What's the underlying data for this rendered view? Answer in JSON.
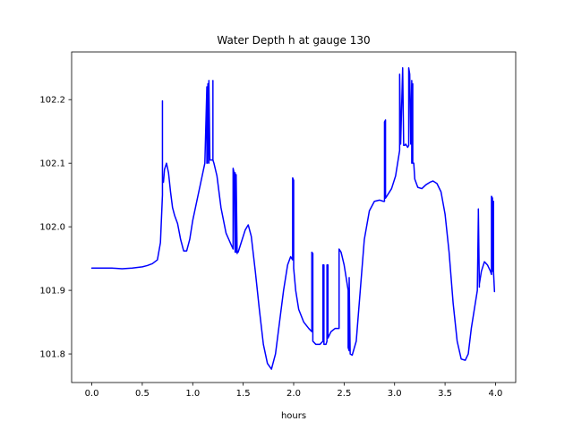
{
  "chart_data": {
    "type": "line",
    "title": "Water Depth h at gauge 130",
    "xlabel": "hours",
    "ylabel": "",
    "xlim": [
      -0.2,
      4.2
    ],
    "ylim": [
      101.755,
      102.275
    ],
    "xticks": [
      "0.0",
      "0.5",
      "1.0",
      "1.5",
      "2.0",
      "2.5",
      "3.0",
      "3.5",
      "4.0"
    ],
    "yticks": [
      "101.8",
      "101.9",
      "102.0",
      "102.1",
      "102.2"
    ],
    "xtick_values": [
      0.0,
      0.5,
      1.0,
      1.5,
      2.0,
      2.5,
      3.0,
      3.5,
      4.0
    ],
    "ytick_values": [
      101.8,
      101.9,
      102.0,
      102.1,
      102.2
    ],
    "grid": false,
    "series_color": "#0000ff",
    "series": [
      {
        "x": [
          0.0,
          0.1,
          0.2,
          0.3,
          0.4,
          0.5,
          0.55,
          0.6,
          0.65,
          0.68,
          0.7,
          0.7,
          0.7,
          0.71,
          0.72,
          0.74,
          0.76,
          0.78,
          0.8,
          0.82,
          0.85,
          0.88,
          0.91,
          0.94,
          0.97,
          1.0,
          1.04,
          1.08,
          1.12,
          1.14,
          1.14,
          1.145,
          1.15,
          1.16,
          1.16,
          1.16,
          1.17,
          1.2,
          1.2,
          1.2,
          1.21,
          1.24,
          1.28,
          1.33,
          1.38,
          1.4,
          1.4,
          1.41,
          1.42,
          1.42,
          1.43,
          1.43,
          1.44,
          1.44,
          1.45,
          1.48,
          1.52,
          1.55,
          1.58,
          1.62,
          1.66,
          1.7,
          1.74,
          1.78,
          1.82,
          1.86,
          1.9,
          1.94,
          1.97,
          1.99,
          1.99,
          2.0,
          2.0,
          2.02,
          2.05,
          2.1,
          2.15,
          2.18,
          2.18,
          2.19,
          2.19,
          2.22,
          2.26,
          2.29,
          2.29,
          2.3,
          2.3,
          2.32,
          2.33,
          2.33,
          2.34,
          2.34,
          2.37,
          2.41,
          2.44,
          2.45,
          2.45,
          2.47,
          2.5,
          2.52,
          2.54,
          2.54,
          2.55,
          2.55,
          2.56,
          2.58,
          2.62,
          2.66,
          2.7,
          2.75,
          2.8,
          2.85,
          2.89,
          2.9,
          2.9,
          2.91,
          2.91,
          2.93,
          2.97,
          3.01,
          3.05,
          3.05,
          3.06,
          3.08,
          3.09,
          3.1,
          3.11,
          3.13,
          3.14,
          3.14,
          3.15,
          3.16,
          3.17,
          3.17,
          3.18,
          3.18,
          3.19,
          3.2,
          3.23,
          3.27,
          3.31,
          3.35,
          3.38,
          3.42,
          3.46,
          3.5,
          3.54,
          3.58,
          3.62,
          3.66,
          3.7,
          3.73,
          3.76,
          3.8,
          3.82,
          3.83,
          3.83,
          3.84,
          3.84,
          3.86,
          3.89,
          3.92,
          3.95,
          3.96,
          3.96,
          3.97,
          3.97,
          3.98,
          3.98,
          3.99
        ],
        "y": [
          101.935,
          101.935,
          101.935,
          101.934,
          101.935,
          101.937,
          101.939,
          101.942,
          101.948,
          101.975,
          102.05,
          102.198,
          102.075,
          102.07,
          102.09,
          102.1,
          102.085,
          102.055,
          102.03,
          102.018,
          102.005,
          101.98,
          101.962,
          101.962,
          101.98,
          102.01,
          102.04,
          102.07,
          102.1,
          102.22,
          102.1,
          102.1,
          102.225,
          102.1,
          102.105,
          102.23,
          102.105,
          102.105,
          102.23,
          102.105,
          102.1,
          102.08,
          102.03,
          101.99,
          101.972,
          101.965,
          102.092,
          102.085,
          101.96,
          102.085,
          101.96,
          102.082,
          101.958,
          101.96,
          101.96,
          101.975,
          101.995,
          102.003,
          101.985,
          101.93,
          101.87,
          101.815,
          101.785,
          101.776,
          101.8,
          101.85,
          101.9,
          101.94,
          101.953,
          101.948,
          102.077,
          102.073,
          101.935,
          101.9,
          101.87,
          101.85,
          101.84,
          101.835,
          101.96,
          101.958,
          101.82,
          101.815,
          101.815,
          101.82,
          101.94,
          101.94,
          101.815,
          101.815,
          101.82,
          101.94,
          101.94,
          101.825,
          101.835,
          101.84,
          101.84,
          101.84,
          101.965,
          101.96,
          101.94,
          101.92,
          101.9,
          101.81,
          101.805,
          101.92,
          101.8,
          101.798,
          101.82,
          101.9,
          101.98,
          102.025,
          102.04,
          102.042,
          102.04,
          102.04,
          102.165,
          102.168,
          102.045,
          102.05,
          102.06,
          102.08,
          102.12,
          102.24,
          102.13,
          102.25,
          102.128,
          102.128,
          102.13,
          102.125,
          102.128,
          102.25,
          102.24,
          102.13,
          102.23,
          102.1,
          102.225,
          102.1,
          102.1,
          102.075,
          102.062,
          102.06,
          102.066,
          102.07,
          102.072,
          102.068,
          102.055,
          102.02,
          101.96,
          101.88,
          101.82,
          101.792,
          101.79,
          101.8,
          101.84,
          101.88,
          101.9,
          102.02,
          102.028,
          101.905,
          101.91,
          101.93,
          101.945,
          101.94,
          101.93,
          101.925,
          102.048,
          102.045,
          101.93,
          102.04,
          101.93,
          101.898
        ]
      }
    ]
  }
}
